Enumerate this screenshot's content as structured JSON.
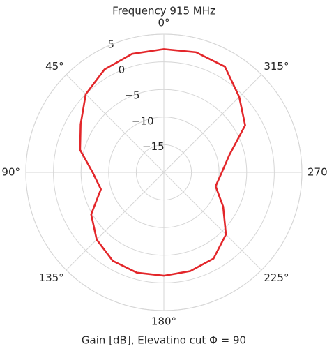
{
  "chart_data": {
    "type": "polar",
    "title": "Frequency 915 MHz",
    "xlabel": "Gain [dB], Elevatino cut Φ = 90",
    "theta_zero": "N",
    "theta_direction": "counterclockwise",
    "theta": [
      0,
      15,
      30,
      45,
      60,
      75,
      90,
      105,
      120,
      135,
      150,
      165,
      180,
      195,
      210,
      225,
      240,
      255,
      270,
      285,
      300,
      315,
      330,
      345
    ],
    "series": [
      {
        "name": "Gain",
        "color": "#e3262a",
        "values": [
          2.3,
          2.2,
          1.5,
          0,
          -2.6,
          -4.3,
          -7.1,
          -8.2,
          -4.8,
          -2.8,
          -1.5,
          -1.2,
          -1.3,
          -1.5,
          -2,
          -4.1,
          -7.6,
          -10.3,
          -9.5,
          -7.7,
          -3,
          -0.7,
          2.1,
          2.5
        ]
      }
    ],
    "rlim": [
      -20,
      5
    ],
    "rticks": [
      {
        "value": -15,
        "label": "−15"
      },
      {
        "value": -10,
        "label": "−10"
      },
      {
        "value": -5,
        "label": "−5"
      },
      0,
      5
    ],
    "thetaticks": [
      {
        "value": 0,
        "label": "0°"
      },
      {
        "value": 45,
        "label": "45°"
      },
      {
        "value": 90,
        "label": "90°"
      },
      {
        "value": 135,
        "label": "135°"
      },
      {
        "value": 180,
        "label": "180°"
      },
      {
        "value": 225,
        "label": "225°"
      },
      {
        "value": 270,
        "label": "270°"
      },
      {
        "value": 315,
        "label": "315°"
      }
    ],
    "grid": true
  }
}
